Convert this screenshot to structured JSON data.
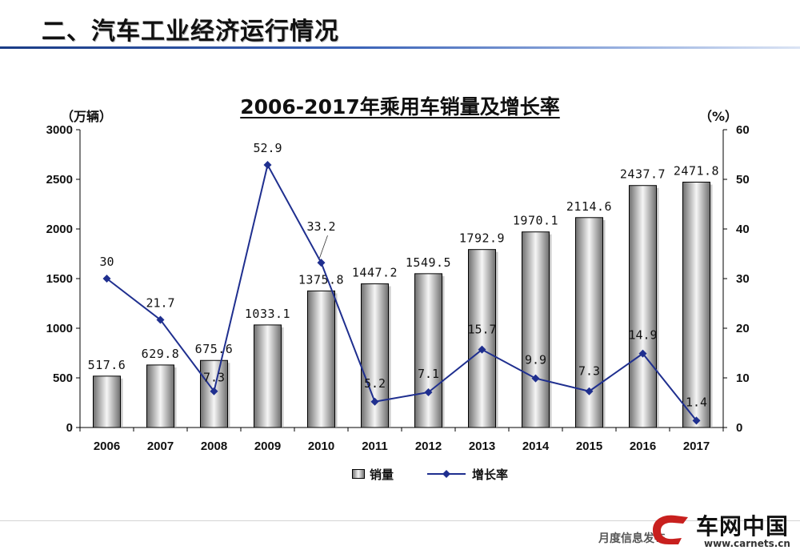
{
  "slide": {
    "title": "二、汽车工业经济运行情况",
    "footer_text": "月度信息发布",
    "logo_text": "车网中国",
    "logo_url": "www.carnets.cn"
  },
  "colors": {
    "line": "#1f2f8f",
    "bar_dark": "#6e6e6e",
    "bar_light": "#f6f6f6",
    "title_rule": "#2a4fa3"
  },
  "chart_data": {
    "type": "bar+line",
    "title": "2006-2017年乘用车销量及增长率",
    "y_left_label": "（万辆）",
    "y_right_label": "（%）",
    "categories": [
      "2006",
      "2007",
      "2008",
      "2009",
      "2010",
      "2011",
      "2012",
      "2013",
      "2014",
      "2015",
      "2016",
      "2017"
    ],
    "y_left_range": [
      0,
      3000
    ],
    "y_left_ticks": [
      0,
      500,
      1000,
      1500,
      2000,
      2500,
      3000
    ],
    "y_right_range": [
      0,
      60
    ],
    "y_right_ticks": [
      0,
      10,
      20,
      30,
      40,
      50,
      60
    ],
    "grid": false,
    "legend_position": "bottom",
    "series": [
      {
        "name": "销量",
        "type": "bar",
        "axis": "left",
        "values": [
          517.6,
          629.8,
          675.6,
          1033.1,
          1375.8,
          1447.2,
          1549.5,
          1792.9,
          1970.1,
          2114.6,
          2437.7,
          2471.8
        ],
        "labels": [
          "517.6",
          "629.8",
          "675.6",
          "1033.1",
          "1375.8",
          "1447.2",
          "1549.5",
          "1792.9",
          "1970.1",
          "2114.6",
          "2437.7",
          "2471.8"
        ]
      },
      {
        "name": "增长率",
        "type": "line",
        "axis": "right",
        "marker": "diamond",
        "values": [
          30,
          21.7,
          7.3,
          52.9,
          33.2,
          5.2,
          7.1,
          15.7,
          9.9,
          7.3,
          14.9,
          1.4
        ],
        "labels": [
          "30",
          "21.7",
          "7.3",
          "52.9",
          "33.2",
          "5.2",
          "7.1",
          "15.7",
          "9.9",
          "7.3",
          "14.9",
          "1.4"
        ]
      }
    ]
  }
}
